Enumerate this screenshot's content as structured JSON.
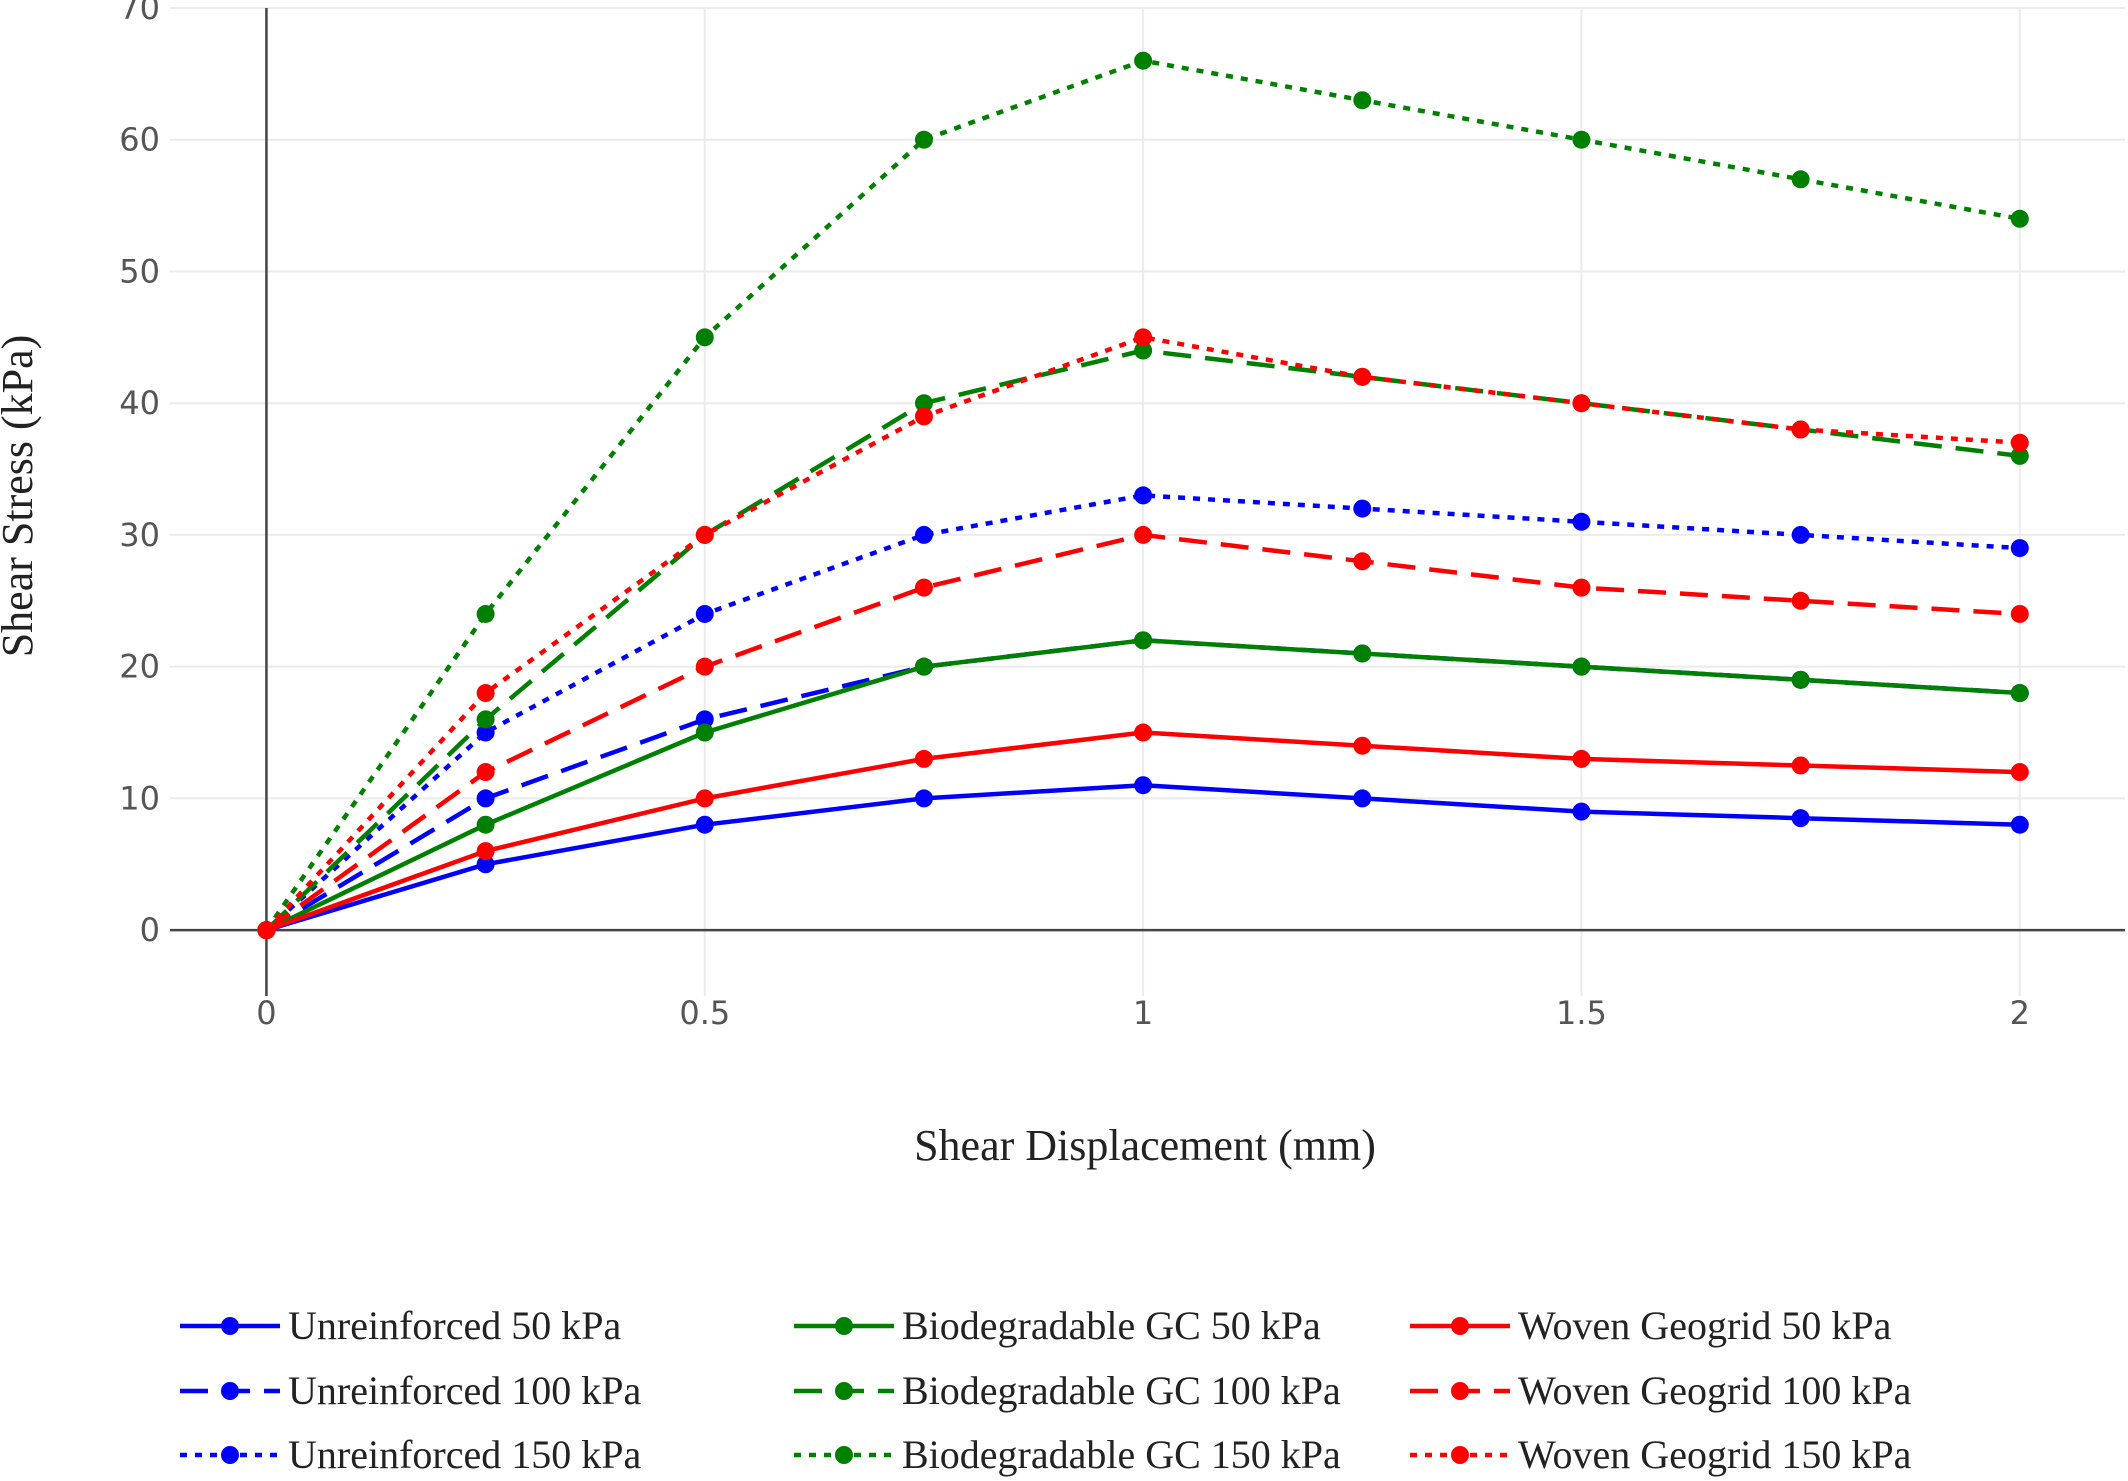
{
  "chart_data": {
    "type": "line",
    "title": "",
    "xlabel": "Shear Displacement (mm)",
    "ylabel": "Shear Stress (kPa)",
    "xlim": [
      -0.11,
      2.12
    ],
    "ylim": [
      -5,
      70
    ],
    "x_ticks": [
      0,
      0.5,
      1,
      1.5,
      2
    ],
    "x_tick_labels": [
      "0",
      "0.5",
      "1",
      "1.5",
      "2"
    ],
    "y_ticks": [
      0,
      10,
      20,
      30,
      40,
      50,
      60,
      70
    ],
    "y_tick_labels": [
      "0",
      "10",
      "20",
      "30",
      "40",
      "50",
      "60",
      "70"
    ],
    "grid": true,
    "legend_position": "bottom",
    "x": [
      0,
      0.25,
      0.5,
      0.75,
      1,
      1.25,
      1.5,
      1.75,
      2
    ],
    "series": [
      {
        "name": "Unreinforced 50 kPa",
        "color": "#0000ff",
        "dash": "solid",
        "values": [
          0,
          5,
          8,
          10,
          11,
          10,
          9,
          8.5,
          8
        ]
      },
      {
        "name": "Unreinforced 100 kPa",
        "color": "#0000ff",
        "dash": "dash",
        "values": [
          0,
          10,
          16,
          20,
          22,
          21,
          20,
          19,
          18
        ]
      },
      {
        "name": "Unreinforced 150 kPa",
        "color": "#0000ff",
        "dash": "dot",
        "values": [
          0,
          15,
          24,
          30,
          33,
          32,
          31,
          30,
          29
        ]
      },
      {
        "name": "Biodegradable GC 50 kPa",
        "color": "#008000",
        "dash": "solid",
        "values": [
          0,
          8,
          15,
          20,
          22,
          21,
          20,
          19,
          18
        ]
      },
      {
        "name": "Biodegradable GC 100 kPa",
        "color": "#008000",
        "dash": "dash",
        "values": [
          0,
          16,
          30,
          40,
          44,
          42,
          40,
          38,
          36
        ]
      },
      {
        "name": "Biodegradable GC 150 kPa",
        "color": "#008000",
        "dash": "dot",
        "values": [
          0,
          24,
          45,
          60,
          66,
          63,
          60,
          57,
          54
        ]
      },
      {
        "name": "Woven Geogrid 50 kPa",
        "color": "#ff0000",
        "dash": "solid",
        "values": [
          0,
          6,
          10,
          13,
          15,
          14,
          13,
          12.5,
          12
        ]
      },
      {
        "name": "Woven Geogrid 100 kPa",
        "color": "#ff0000",
        "dash": "dash",
        "values": [
          0,
          12,
          20,
          26,
          30,
          28,
          26,
          25,
          24
        ]
      },
      {
        "name": "Woven Geogrid 150 kPa",
        "color": "#ff0000",
        "dash": "dot",
        "values": [
          0,
          18,
          30,
          39,
          45,
          42,
          40,
          38,
          37
        ]
      }
    ]
  }
}
